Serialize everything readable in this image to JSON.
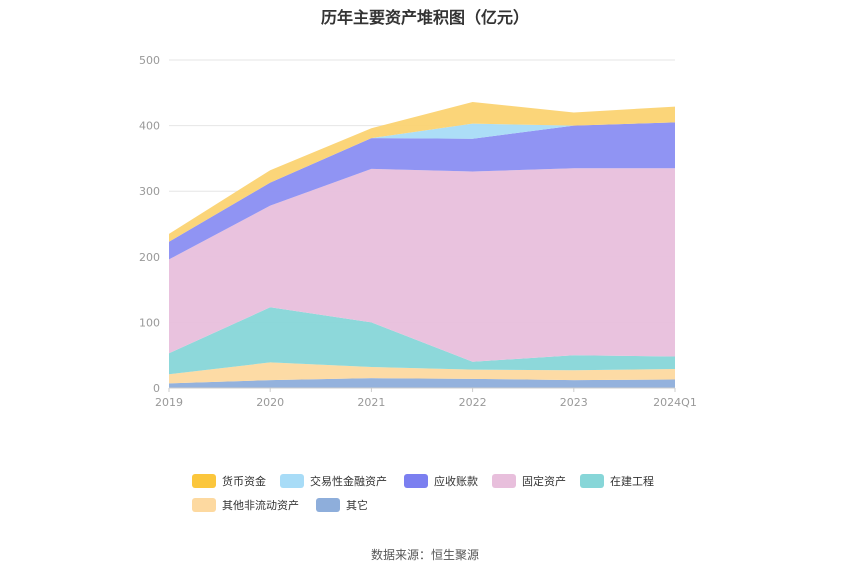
{
  "chart_data": {
    "type": "area",
    "stacked": true,
    "title": "历年主要资产堆积图（亿元）",
    "categories": [
      "2019",
      "2020",
      "2021",
      "2022",
      "2023",
      "2024Q1"
    ],
    "ylim": [
      0,
      500
    ],
    "yticks": [
      0,
      100,
      200,
      300,
      400,
      500
    ],
    "grid": true,
    "legend_position": "bottom",
    "series": [
      {
        "name": "其它",
        "color": "#8eaedb",
        "values": [
          7,
          12,
          15,
          14,
          12,
          13
        ]
      },
      {
        "name": "其他非流动资产",
        "color": "#fdd9a0",
        "values": [
          14,
          27,
          17,
          14,
          15,
          16
        ]
      },
      {
        "name": "在建工程",
        "color": "#87d6d8",
        "values": [
          32,
          84,
          68,
          12,
          23,
          19
        ]
      },
      {
        "name": "固定资产",
        "color": "#e8bfdc",
        "values": [
          143,
          155,
          234,
          290,
          285,
          287
        ]
      },
      {
        "name": "应收账款",
        "color": "#8a8ef2",
        "values": [
          27,
          35,
          47,
          50,
          65,
          70
        ]
      },
      {
        "name": "交易性金融资产",
        "color": "#a8dcf7",
        "values": [
          0,
          0,
          0,
          23,
          0,
          0
        ]
      },
      {
        "name": "货币资金",
        "color": "#fbd372",
        "values": [
          12,
          19,
          15,
          33,
          20,
          24
        ]
      }
    ]
  },
  "legend": [
    {
      "label": "货币资金",
      "color": "#fbc63c"
    },
    {
      "label": "交易性金融资产",
      "color": "#a8dcf7"
    },
    {
      "label": "应收账款",
      "color": "#7b7ff0"
    },
    {
      "label": "固定资产",
      "color": "#e8bfdc"
    },
    {
      "label": "在建工程",
      "color": "#87d6d8"
    },
    {
      "label": "其他非流动资产",
      "color": "#fdd9a0"
    },
    {
      "label": "其它",
      "color": "#8eaedb"
    }
  ],
  "source": "数据来源：恒生聚源"
}
